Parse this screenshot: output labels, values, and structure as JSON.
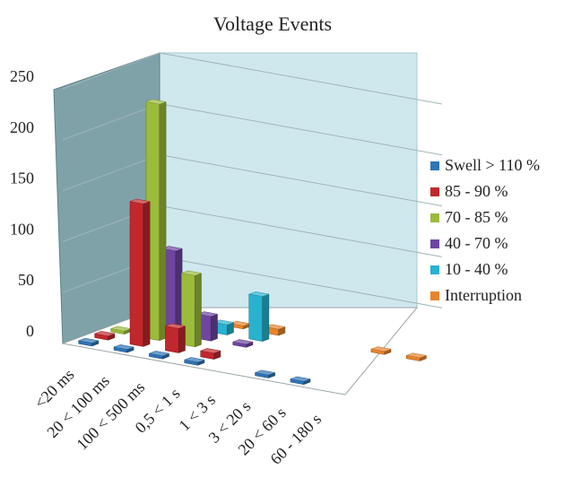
{
  "chart_data": {
    "type": "bar",
    "subtype": "3d-column",
    "title": "Voltage Events",
    "categories": [
      "<20 ms",
      "20 < 100 ms",
      "100 < 500 ms",
      "0,5 < 1 s",
      "1 < 3 s",
      "3 < 20 s",
      "20 < 60 s",
      "60 - 180 s"
    ],
    "series": [
      {
        "name": "Swell > 110 %",
        "color": "#2e75b6",
        "values": [
          1,
          1,
          1,
          1,
          0,
          1,
          1,
          0
        ]
      },
      {
        "name": "85 - 90 %",
        "color": "#c0282d",
        "values": [
          4,
          140,
          24,
          6,
          0,
          0,
          0,
          0
        ]
      },
      {
        "name": "70 - 85 %",
        "color": "#9bbb3b",
        "values": [
          1,
          232,
          70,
          0,
          0,
          0,
          0,
          0
        ]
      },
      {
        "name": "40 - 70 %",
        "color": "#6e45a0",
        "values": [
          0,
          82,
          24,
          3,
          0,
          0,
          0,
          0
        ]
      },
      {
        "name": "10 - 40 %",
        "color": "#27b2cf",
        "values": [
          0,
          0,
          10,
          44,
          0,
          0,
          0,
          0
        ]
      },
      {
        "name": "Interruption",
        "color": "#e8842c",
        "values": [
          0,
          0,
          3,
          6,
          0,
          0,
          1,
          1
        ]
      }
    ],
    "yticks": [
      0,
      50,
      100,
      150,
      200,
      250
    ],
    "ylim": [
      0,
      250
    ],
    "xlabel": "",
    "ylabel": "",
    "grid": true,
    "legend": "right"
  }
}
